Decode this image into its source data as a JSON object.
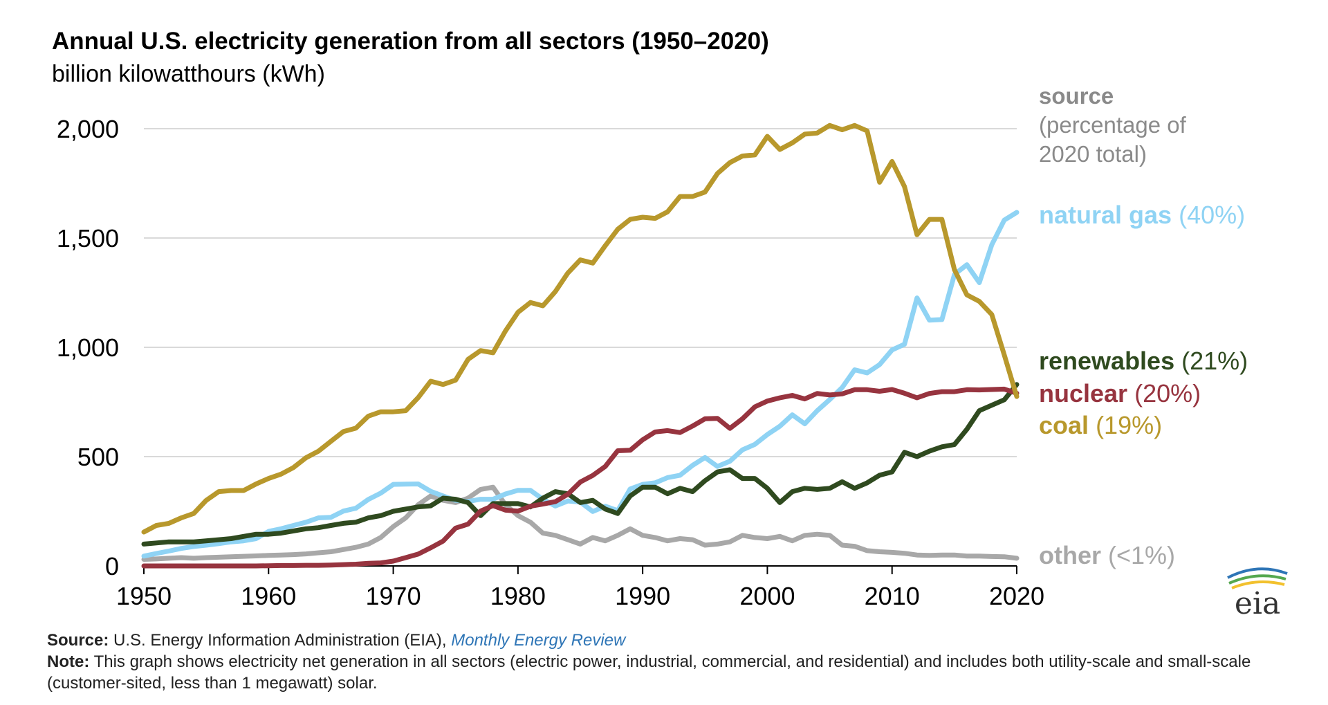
{
  "title": "Annual U.S. electricity generation from all sectors (1950–2020)",
  "subtitle": "billion kilowatthours (kWh)",
  "legend_header": {
    "line1": "source",
    "line2": "(percentage of",
    "line3": "2020 total)"
  },
  "source_label": "Source:",
  "source_text": "U.S. Energy Information Administration (EIA),",
  "source_link": "Monthly Energy Review",
  "note_label": "Note:",
  "note_text": "This graph shows electricity net generation in all sectors (electric power, industrial, commercial, and residential) and includes both utility-scale and small-scale (customer-sited, less than 1 megawatt) solar.",
  "logo_text": "eia",
  "colors": {
    "natural_gas": "#8fd3f4",
    "coal": "#b8982c",
    "nuclear": "#97343f",
    "renewables": "#2f4a1f",
    "other": "#a8a8a8",
    "grid": "#d9d9d9"
  },
  "chart_data": {
    "type": "line",
    "title": "Annual U.S. electricity generation from all sectors (1950–2020)",
    "ylabel": "billion kilowatthours (kWh)",
    "xlim": [
      1950,
      2020
    ],
    "ylim": [
      0,
      2000
    ],
    "x_ticks": [
      1950,
      1960,
      1970,
      1980,
      1990,
      2000,
      2010,
      2020
    ],
    "y_ticks": [
      0,
      500,
      1000,
      1500,
      2000
    ],
    "y_tick_labels": [
      "0",
      "500",
      "1,000",
      "1,500",
      "2,000"
    ],
    "grid": "horizontal",
    "legend": "right",
    "x": [
      1950,
      1951,
      1952,
      1953,
      1954,
      1955,
      1956,
      1957,
      1958,
      1959,
      1960,
      1961,
      1962,
      1963,
      1964,
      1965,
      1966,
      1967,
      1968,
      1969,
      1970,
      1971,
      1972,
      1973,
      1974,
      1975,
      1976,
      1977,
      1978,
      1979,
      1980,
      1981,
      1982,
      1983,
      1984,
      1985,
      1986,
      1987,
      1988,
      1989,
      1990,
      1991,
      1992,
      1993,
      1994,
      1995,
      1996,
      1997,
      1998,
      1999,
      2000,
      2001,
      2002,
      2003,
      2004,
      2005,
      2006,
      2007,
      2008,
      2009,
      2010,
      2011,
      2012,
      2013,
      2014,
      2015,
      2016,
      2017,
      2018,
      2019,
      2020
    ],
    "series": [
      {
        "key": "other",
        "name": "other",
        "pct": "(<1%)",
        "color": "#a8a8a8",
        "values": [
          30,
          32,
          35,
          38,
          35,
          38,
          40,
          42,
          44,
          46,
          48,
          50,
          52,
          55,
          60,
          65,
          75,
          85,
          100,
          130,
          180,
          220,
          280,
          320,
          300,
          290,
          310,
          350,
          360,
          280,
          230,
          200,
          150,
          140,
          120,
          100,
          130,
          115,
          140,
          170,
          140,
          130,
          115,
          125,
          120,
          95,
          100,
          110,
          140,
          130,
          125,
          135,
          115,
          140,
          145,
          140,
          95,
          90,
          70,
          65,
          62,
          58,
          50,
          48,
          50,
          50,
          45,
          45,
          43,
          42,
          35
        ]
      },
      {
        "key": "natural_gas",
        "name": "natural gas",
        "pct": "(40%)",
        "color": "#8fd3f4",
        "values": [
          45,
          57,
          68,
          80,
          89,
          95,
          102,
          110,
          115,
          125,
          158,
          170,
          185,
          200,
          220,
          222,
          251,
          264,
          304,
          333,
          373,
          374,
          375,
          341,
          320,
          300,
          295,
          305,
          305,
          329,
          346,
          346,
          305,
          274,
          297,
          292,
          249,
          273,
          253,
          352,
          373,
          380,
          404,
          415,
          460,
          496,
          455,
          479,
          531,
          556,
          601,
          639,
          691,
          650,
          710,
          761,
          816,
          897,
          883,
          921,
          988,
          1014,
          1226,
          1124,
          1127,
          1333,
          1378,
          1296,
          1469,
          1582,
          1617
        ]
      },
      {
        "key": "renewables",
        "name": "renewables",
        "pct": "(21%)",
        "color": "#2f4a1f",
        "values": [
          100,
          105,
          110,
          110,
          110,
          115,
          120,
          125,
          135,
          145,
          145,
          150,
          160,
          170,
          175,
          185,
          195,
          200,
          220,
          230,
          250,
          260,
          270,
          275,
          310,
          305,
          290,
          230,
          285,
          285,
          285,
          270,
          310,
          340,
          330,
          290,
          300,
          260,
          240,
          320,
          360,
          360,
          330,
          355,
          340,
          390,
          430,
          440,
          400,
          400,
          355,
          290,
          340,
          355,
          350,
          355,
          385,
          355,
          380,
          415,
          430,
          520,
          500,
          525,
          545,
          555,
          625,
          710,
          735,
          760,
          830
        ]
      },
      {
        "key": "nuclear",
        "name": "nuclear",
        "pct": "(20%)",
        "color": "#97343f",
        "values": [
          0,
          0,
          0,
          0,
          0,
          0,
          0,
          0,
          0,
          0,
          1,
          2,
          2,
          3,
          3,
          4,
          6,
          8,
          12,
          14,
          22,
          38,
          54,
          83,
          114,
          173,
          191,
          251,
          276,
          255,
          251,
          273,
          283,
          294,
          328,
          384,
          414,
          455,
          527,
          529,
          577,
          613,
          619,
          610,
          640,
          673,
          675,
          629,
          673,
          728,
          754,
          769,
          780,
          764,
          789,
          782,
          787,
          806,
          806,
          799,
          807,
          790,
          769,
          789,
          797,
          797,
          806,
          805,
          807,
          809,
          790
        ]
      },
      {
        "key": "coal",
        "name": "coal",
        "pct": "(19%)",
        "color": "#b8982c",
        "values": [
          155,
          185,
          195,
          220,
          240,
          300,
          340,
          345,
          345,
          375,
          400,
          420,
          450,
          495,
          525,
          570,
          615,
          630,
          685,
          705,
          705,
          710,
          770,
          845,
          830,
          850,
          945,
          985,
          975,
          1075,
          1160,
          1205,
          1190,
          1255,
          1340,
          1400,
          1385,
          1465,
          1540,
          1585,
          1595,
          1590,
          1620,
          1690,
          1690,
          1710,
          1795,
          1845,
          1875,
          1880,
          1965,
          1905,
          1935,
          1975,
          1980,
          2015,
          1995,
          2015,
          1990,
          1755,
          1850,
          1735,
          1515,
          1585,
          1585,
          1355,
          1240,
          1210,
          1150,
          965,
          775
        ]
      }
    ]
  }
}
